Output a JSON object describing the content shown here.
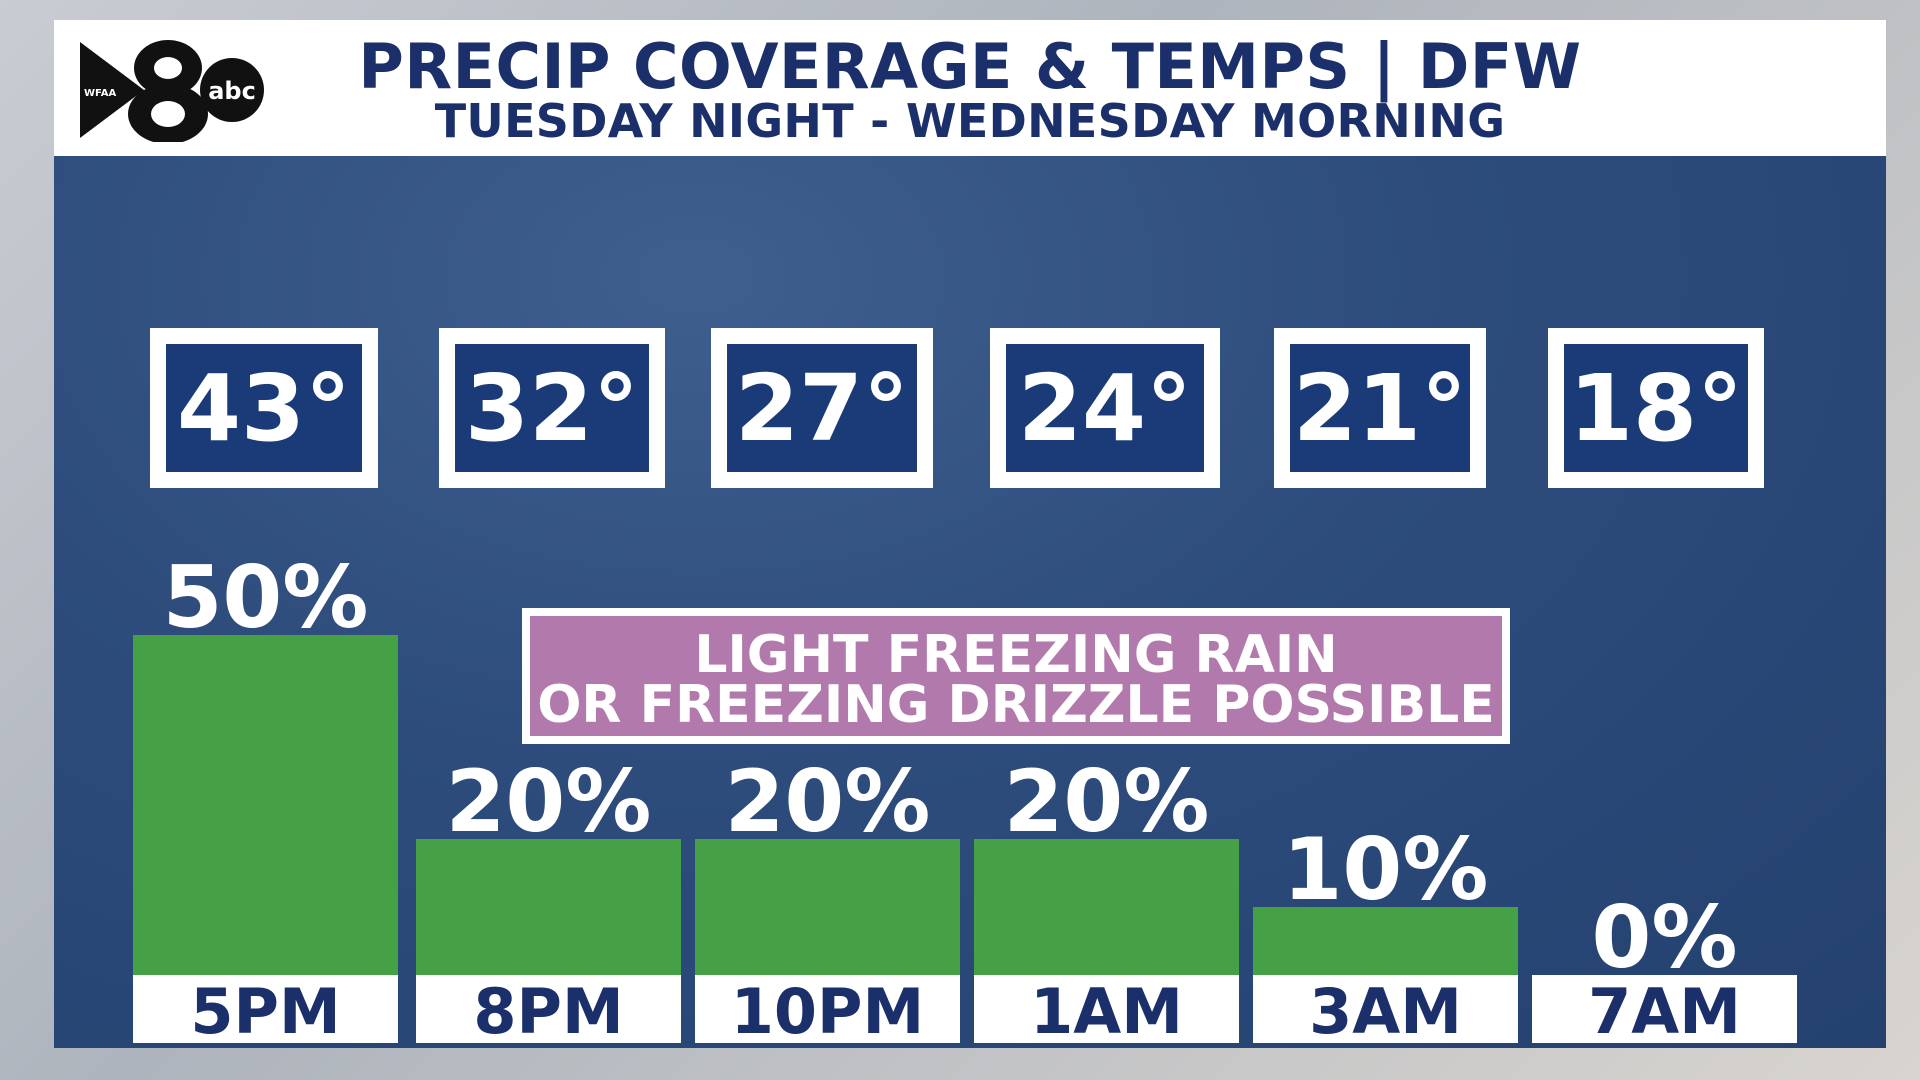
{
  "header": {
    "title": "PRECIP COVERAGE & TEMPS | DFW",
    "subtitle": "TUESDAY NIGHT - WEDNESDAY MORNING"
  },
  "logo": {
    "station": "WFAA",
    "channel": "8",
    "network": "abc"
  },
  "annotation": {
    "line1": "LIGHT FREEZING RAIN",
    "line2": "OR FREEZING DRIZZLE POSSIBLE"
  },
  "colors": {
    "background": "#2d4c7c",
    "bar": "#45a046",
    "temp_box": "#1a3a78",
    "annotation": "#b27aac",
    "title": "#1b2f6a"
  },
  "chart_data": {
    "type": "bar",
    "categories": [
      "5PM",
      "8PM",
      "10PM",
      "1AM",
      "3AM",
      "7AM"
    ],
    "series": [
      {
        "name": "Precip Coverage",
        "values": [
          50,
          20,
          20,
          20,
          10,
          0
        ]
      }
    ],
    "value_labels": [
      "50%",
      "20%",
      "20%",
      "20%",
      "10%",
      "0%"
    ],
    "temperatures": [
      "43°",
      "32°",
      "27°",
      "24°",
      "21°",
      "18°"
    ],
    "ylim": [
      0,
      50
    ]
  }
}
